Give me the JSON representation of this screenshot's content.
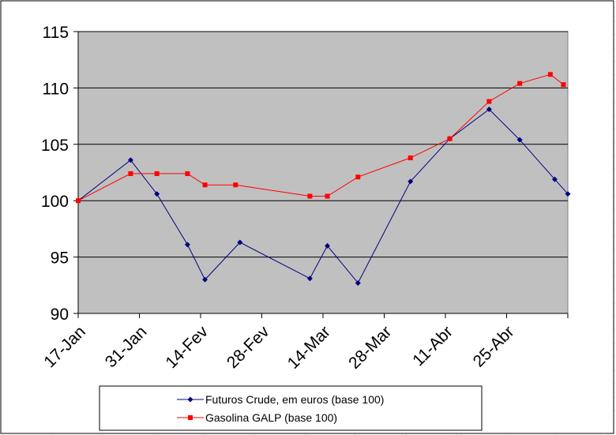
{
  "chart_data": {
    "type": "line",
    "title": "",
    "xlabel": "",
    "ylabel": "",
    "ylim": [
      90,
      115
    ],
    "yticks": [
      90,
      95,
      100,
      105,
      110,
      115
    ],
    "x_tick_labels": [
      "17-Jan",
      "31-Jan",
      "14-Fev",
      "28-Fev",
      "14-Mar",
      "28-Mar",
      "11-Abr",
      "25-Abr"
    ],
    "x_tick_days": [
      0,
      14,
      28,
      42,
      56,
      70,
      84,
      98
    ],
    "xlim_days": [
      0,
      112
    ],
    "grid": "horizontal",
    "legend_position": "bottom",
    "plot_background": "#c0c0c0",
    "series": [
      {
        "name": "Futuros Crude, em euros (base 100)",
        "color": "#000080",
        "marker": "diamond",
        "x_days": [
          0,
          12,
          18,
          25,
          29,
          37,
          53,
          57,
          64,
          76,
          85,
          94,
          101,
          109,
          112
        ],
        "values": [
          100,
          103.6,
          100.6,
          96.1,
          93.0,
          96.3,
          93.1,
          96.0,
          92.7,
          101.7,
          105.5,
          108.1,
          105.4,
          101.9,
          100.6
        ]
      },
      {
        "name": "Gasolina GALP (base 100)",
        "color": "#ff0000",
        "marker": "square",
        "x_days": [
          0,
          12,
          18,
          25,
          29,
          36,
          53,
          57,
          64,
          76,
          85,
          94,
          101,
          108,
          111
        ],
        "values": [
          100,
          102.4,
          102.4,
          102.4,
          101.4,
          101.4,
          100.4,
          100.4,
          102.1,
          103.8,
          105.5,
          108.8,
          110.4,
          111.2,
          110.3
        ]
      }
    ]
  }
}
